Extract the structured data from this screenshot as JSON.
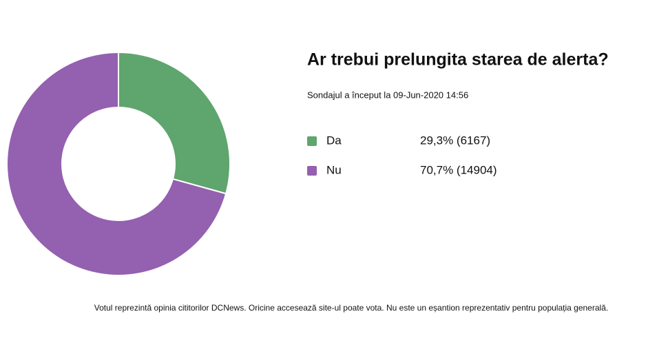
{
  "chart_data": {
    "type": "pie",
    "donut": true,
    "title": "Ar trebui prelungita starea de alerta?",
    "subtitle": "Sondajul a început la 09-Jun-2020 14:56",
    "categories": [
      "Da",
      "Nu"
    ],
    "values": [
      29.3,
      70.7
    ],
    "value_labels": [
      "29,3% (6167)",
      "70,7% (14904)"
    ],
    "colors": [
      "#5fa56e",
      "#9460b0"
    ],
    "note": "Votul reprezintă opinia cititorilor DCNews. Oricine accesează site-ul poate vota. Nu este un eșantion reprezentativ pentru populația generală."
  }
}
